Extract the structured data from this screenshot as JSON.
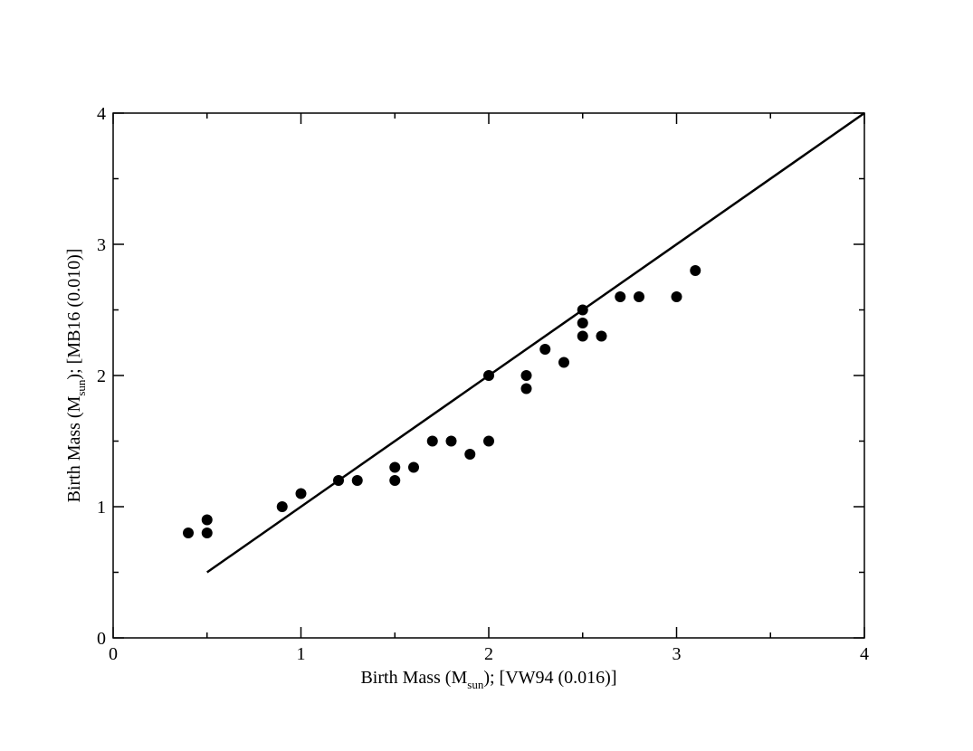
{
  "chart_data": {
    "type": "scatter",
    "xlim": [
      0,
      4
    ],
    "ylim": [
      0,
      4
    ],
    "x_major_ticks": [
      0,
      1,
      2,
      3,
      4
    ],
    "y_major_ticks": [
      0,
      1,
      2,
      3,
      4
    ],
    "x_minor_ticks": [
      0.5,
      1.5,
      2.5,
      3.5
    ],
    "y_minor_ticks": [
      0.5,
      1.5,
      2.5,
      3.5
    ],
    "x_tick_labels": [
      "0",
      "1",
      "2",
      "3",
      "4"
    ],
    "y_tick_labels": [
      "0",
      "1",
      "2",
      "3",
      "4"
    ],
    "xlabel": {
      "prefix": "Birth Mass (M",
      "sub": "sun",
      "suffix": "); [VW94 (0.016)]"
    },
    "ylabel": {
      "prefix": "Birth Mass (M",
      "sub": "sun",
      "suffix": "); [MB16 (0.010)]"
    },
    "grid": false,
    "points": [
      {
        "x": 0.4,
        "y": 0.8
      },
      {
        "x": 0.5,
        "y": 0.8
      },
      {
        "x": 0.5,
        "y": 0.9
      },
      {
        "x": 0.9,
        "y": 1.0
      },
      {
        "x": 1.0,
        "y": 1.1
      },
      {
        "x": 1.2,
        "y": 1.2
      },
      {
        "x": 1.3,
        "y": 1.2
      },
      {
        "x": 1.5,
        "y": 1.2
      },
      {
        "x": 1.5,
        "y": 1.3
      },
      {
        "x": 1.6,
        "y": 1.3
      },
      {
        "x": 1.7,
        "y": 1.5
      },
      {
        "x": 1.8,
        "y": 1.5
      },
      {
        "x": 1.9,
        "y": 1.4
      },
      {
        "x": 2.0,
        "y": 1.5
      },
      {
        "x": 2.0,
        "y": 2.0
      },
      {
        "x": 2.2,
        "y": 1.9
      },
      {
        "x": 2.2,
        "y": 2.0
      },
      {
        "x": 2.3,
        "y": 2.2
      },
      {
        "x": 2.4,
        "y": 2.1
      },
      {
        "x": 2.5,
        "y": 2.3
      },
      {
        "x": 2.5,
        "y": 2.4
      },
      {
        "x": 2.5,
        "y": 2.5
      },
      {
        "x": 2.6,
        "y": 2.3
      },
      {
        "x": 2.7,
        "y": 2.6
      },
      {
        "x": 2.8,
        "y": 2.6
      },
      {
        "x": 3.0,
        "y": 2.6
      },
      {
        "x": 3.1,
        "y": 2.8
      }
    ],
    "line": {
      "x": [
        0.5,
        4.0
      ],
      "y": [
        0.5,
        4.0
      ]
    },
    "colors": {
      "marker": "#000000",
      "line": "#000000",
      "axes": "#000000"
    }
  }
}
